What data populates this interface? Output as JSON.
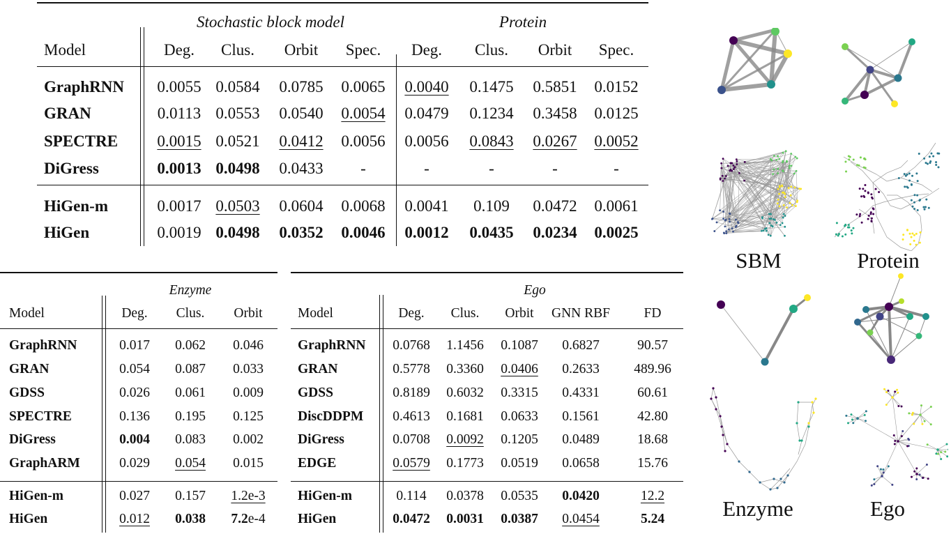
{
  "top_table": {
    "group_headers": [
      "Stochastic block model",
      "Protein"
    ],
    "columns": [
      "Model",
      "Deg.",
      "Clus.",
      "Orbit",
      "Spec.",
      "Deg.",
      "Clus.",
      "Orbit",
      "Spec."
    ],
    "rows": [
      {
        "model": "GraphRNN",
        "values": [
          "0.0055",
          "0.0584",
          "0.0785",
          "0.0065",
          "0.0040",
          "0.1475",
          "0.5851",
          "0.0152"
        ],
        "style": [
          "",
          "",
          "",
          "",
          "u",
          "",
          "",
          ""
        ]
      },
      {
        "model": "GRAN",
        "values": [
          "0.0113",
          "0.0553",
          "0.0540",
          "0.0054",
          "0.0479",
          "0.1234",
          "0.3458",
          "0.0125"
        ],
        "style": [
          "",
          "",
          "",
          "u",
          "",
          "",
          "",
          ""
        ]
      },
      {
        "model": "SPECTRE",
        "values": [
          "0.0015",
          "0.0521",
          "0.0412",
          "0.0056",
          "0.0056",
          "0.0843",
          "0.0267",
          "0.0052"
        ],
        "style": [
          "u",
          "",
          "u",
          "",
          "",
          "u",
          "u",
          "u"
        ]
      },
      {
        "model": "DiGress",
        "values": [
          "0.0013",
          "0.0498",
          "0.0433",
          "-",
          "-",
          "-",
          "-",
          "-"
        ],
        "style": [
          "b",
          "b",
          "",
          "",
          "",
          "",
          "",
          ""
        ]
      },
      {
        "model": "HiGen-m",
        "values": [
          "0.0017",
          "0.0503",
          "0.0604",
          "0.0068",
          "0.0041",
          "0.109",
          "0.0472",
          "0.0061"
        ],
        "style": [
          "",
          "u",
          "",
          "",
          "",
          "",
          "",
          ""
        ]
      },
      {
        "model": "HiGen",
        "values": [
          "0.0019",
          "0.0498",
          "0.0352",
          "0.0046",
          "0.0012",
          "0.0435",
          "0.0234",
          "0.0025"
        ],
        "style": [
          "",
          "b",
          "b",
          "b",
          "b",
          "b",
          "b",
          "b"
        ]
      }
    ]
  },
  "enzyme_table": {
    "group_header": "Enzyme",
    "columns": [
      "Model",
      "Deg.",
      "Clus.",
      "Orbit"
    ],
    "rows": [
      {
        "model": "GraphRNN",
        "values": [
          "0.017",
          "0.062",
          "0.046"
        ],
        "style": [
          "",
          "",
          ""
        ]
      },
      {
        "model": "GRAN",
        "values": [
          "0.054",
          "0.087",
          "0.033"
        ],
        "style": [
          "",
          "",
          ""
        ]
      },
      {
        "model": "GDSS",
        "values": [
          "0.026",
          "0.061",
          "0.009"
        ],
        "style": [
          "",
          "",
          ""
        ]
      },
      {
        "model": "SPECTRE",
        "values": [
          "0.136",
          "0.195",
          "0.125"
        ],
        "style": [
          "",
          "",
          ""
        ]
      },
      {
        "model": "DiGress",
        "values": [
          "0.004",
          "0.083",
          "0.002"
        ],
        "style": [
          "b",
          "",
          ""
        ]
      },
      {
        "model": "GraphARM",
        "values": [
          "0.029",
          "0.054",
          "0.015"
        ],
        "style": [
          "",
          "u",
          ""
        ]
      },
      {
        "model": "HiGen-m",
        "values": [
          "0.027",
          "0.157",
          "1.2e-3"
        ],
        "style": [
          "",
          "",
          "u"
        ]
      },
      {
        "model": "HiGen",
        "values": [
          "0.012",
          "0.038",
          "7.2e-4"
        ],
        "style": [
          "u",
          "b",
          "bmant"
        ]
      }
    ]
  },
  "ego_table": {
    "group_header": "Ego",
    "columns": [
      "Model",
      "Deg.",
      "Clus.",
      "Orbit",
      "GNN RBF",
      "FD"
    ],
    "rows": [
      {
        "model": "GraphRNN",
        "values": [
          "0.0768",
          "1.1456",
          "0.1087",
          "0.6827",
          "90.57"
        ],
        "style": [
          "",
          "",
          "",
          "",
          ""
        ]
      },
      {
        "model": "GRAN",
        "values": [
          "0.5778",
          "0.3360",
          "0.0406",
          "0.2633",
          "489.96"
        ],
        "style": [
          "",
          "",
          "u",
          "",
          ""
        ]
      },
      {
        "model": "GDSS",
        "values": [
          "0.8189",
          "0.6032",
          "0.3315",
          "0.4331",
          "60.61"
        ],
        "style": [
          "",
          "",
          "",
          "",
          ""
        ]
      },
      {
        "model": "DiscDDPM",
        "values": [
          "0.4613",
          "0.1681",
          "0.0633",
          "0.1561",
          "42.80"
        ],
        "style": [
          "",
          "",
          "",
          "",
          ""
        ]
      },
      {
        "model": "DiGress",
        "values": [
          "0.0708",
          "0.0092",
          "0.1205",
          "0.0489",
          "18.68"
        ],
        "style": [
          "",
          "u",
          "",
          "",
          ""
        ]
      },
      {
        "model": "EDGE",
        "values": [
          "0.0579",
          "0.1773",
          "0.0519",
          "0.0658",
          "15.76"
        ],
        "style": [
          "u",
          "",
          "",
          "",
          ""
        ]
      },
      {
        "model": "HiGen-m",
        "values": [
          "0.114",
          "0.0378",
          "0.0535",
          "0.0420",
          "12.2"
        ],
        "style": [
          "",
          "",
          "",
          "b",
          "u"
        ]
      },
      {
        "model": "HiGen",
        "values": [
          "0.0472",
          "0.0031",
          "0.0387",
          "0.0454",
          "5.24"
        ],
        "style": [
          "b",
          "b",
          "b",
          "u",
          "b"
        ]
      }
    ]
  },
  "graph_panels": [
    {
      "label": "SBM"
    },
    {
      "label": "Protein"
    },
    {
      "label": "Enzyme"
    },
    {
      "label": "Ego"
    }
  ],
  "colors": {
    "purple": "#440154",
    "indigo": "#414487",
    "blue": "#2a788e",
    "teal": "#22a884",
    "green": "#7ad151",
    "yellow": "#fde725",
    "edge": "#888888"
  }
}
